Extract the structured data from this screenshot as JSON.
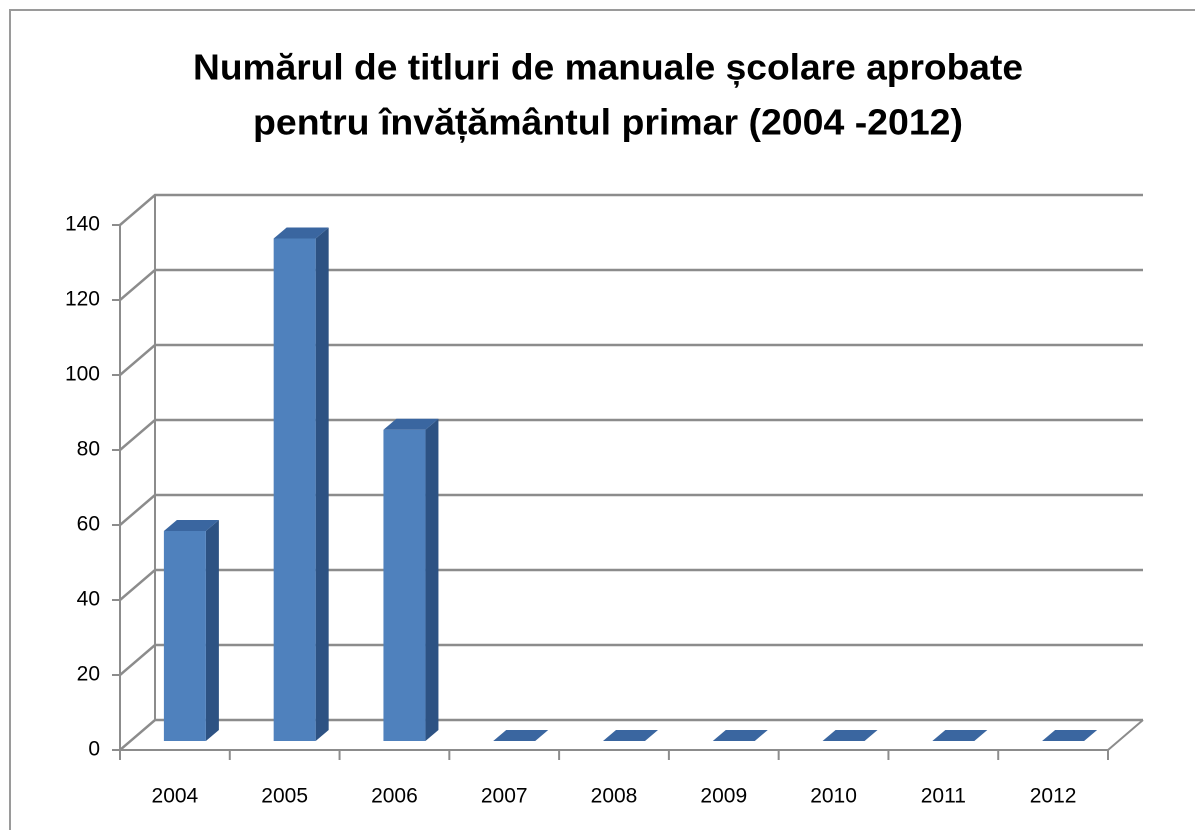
{
  "chart_data": {
    "type": "bar3d",
    "title": [
      "Numărul de titluri de manuale școlare aprobate",
      "pentru învățământul primar (2004 -2012)"
    ],
    "categories": [
      "2004",
      "2005",
      "2006",
      "2007",
      "2008",
      "2009",
      "2010",
      "2011",
      "2012"
    ],
    "values": [
      56,
      134,
      83,
      0,
      0,
      0,
      0,
      0,
      0
    ],
    "color": "#4f81bd",
    "ylim": [
      0,
      140
    ],
    "yticks": [
      0,
      20,
      40,
      60,
      80,
      100,
      120,
      140
    ],
    "grid": true
  }
}
